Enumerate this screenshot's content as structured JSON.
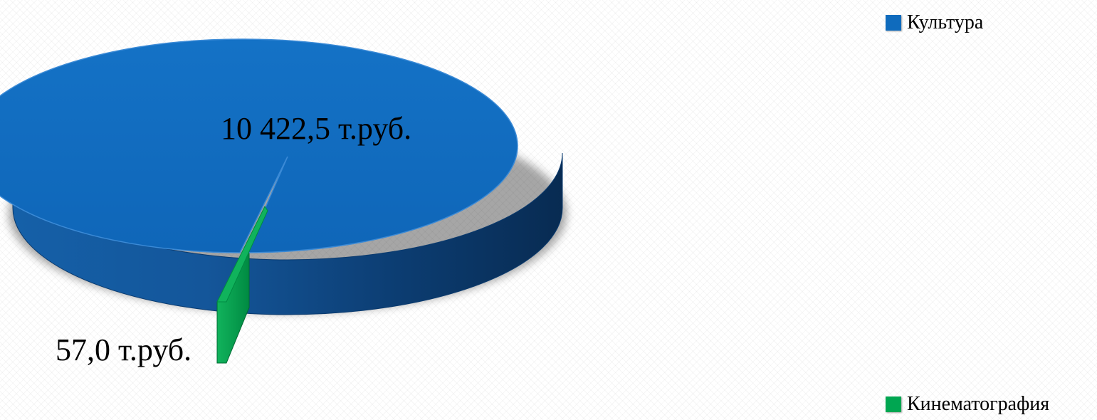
{
  "chart_data": {
    "type": "pie",
    "three_d": true,
    "categories": [
      "Культура",
      "Кинематография"
    ],
    "values": [
      10422.5,
      57.0
    ],
    "data_labels": [
      "10 422,5 т.руб.",
      "57,0 т.руб."
    ],
    "colors": [
      "#0f6bbd",
      "#00a651"
    ],
    "legend_placement": "right",
    "title": ""
  }
}
